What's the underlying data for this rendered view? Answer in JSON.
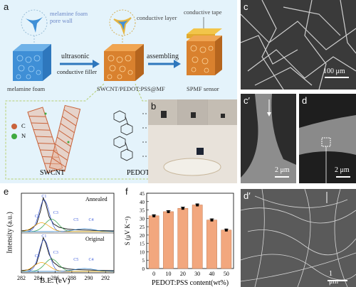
{
  "panels": {
    "a": {
      "label": "a",
      "pore_wall_label": "melamine foam\npore wall",
      "melamine_foam_label": "melamine foam",
      "ultrasonic_label": "ultrasonic",
      "conductive_filler_label": "conductive filler",
      "conductive_layer_label": "conductive layer",
      "composite_label": "SWCNT/PEDOT:PSS@MF",
      "assembling_label": "assembling",
      "conductive_tape_label": "conductive tape",
      "sensor_label": "SPMF sensor",
      "legend_c": "C",
      "legend_n": "N",
      "swcnt_label": "SWCNT",
      "pedot_label": "PEDOT:PSS",
      "colors": {
        "background": "#e4f3fb",
        "foam_blue": "#3f8fd6",
        "foam_orange": "#d9812e",
        "carbon": "#c9633b",
        "nitrogen": "#3faa3f"
      }
    },
    "b": {
      "label": "b"
    },
    "c": {
      "label": "c",
      "scale": "100 μm"
    },
    "c_prime": {
      "label": "c′",
      "scale": "2 μm"
    },
    "d": {
      "label": "d",
      "scale": "2 μm"
    },
    "d_prime": {
      "label": "d′",
      "scale": "1 μm"
    },
    "e": {
      "label": "e",
      "annealed_label": "Annealed",
      "original_label": "Original",
      "peak_labels": [
        "C1",
        "C2",
        "C3",
        "C5",
        "C4"
      ],
      "ylabel": "Intensity (a.u.)",
      "xlabel": "B.E. (eV)",
      "xticks": [
        "282",
        "284",
        "286",
        "288",
        "290",
        "292"
      ]
    },
    "f": {
      "label": "f"
    }
  },
  "chart_data": [
    {
      "type": "line",
      "panel": "e",
      "xlabel": "B.E. (eV)",
      "ylabel": "Intensity (a.u.)",
      "xlim": [
        282,
        293
      ],
      "series": [
        {
          "name": "Annealed",
          "x": [
            282,
            283,
            283.8,
            284.3,
            284.6,
            284.9,
            285.3,
            285.8,
            286.5,
            287.5,
            288.5,
            290,
            291,
            293
          ],
          "y": [
            0.02,
            0.05,
            0.2,
            0.6,
            0.95,
            0.78,
            0.42,
            0.22,
            0.12,
            0.07,
            0.05,
            0.04,
            0.03,
            0.02
          ]
        },
        {
          "name": "Original",
          "x": [
            282,
            283,
            283.8,
            284.3,
            284.6,
            284.9,
            285.3,
            285.8,
            286.5,
            287.5,
            288.5,
            290,
            291,
            293
          ],
          "y": [
            0.02,
            0.05,
            0.22,
            0.65,
            0.95,
            0.8,
            0.48,
            0.26,
            0.13,
            0.07,
            0.05,
            0.04,
            0.03,
            0.02
          ]
        }
      ],
      "grid": false
    },
    {
      "type": "bar",
      "panel": "f",
      "categories": [
        "0",
        "10",
        "20",
        "30",
        "40",
        "50"
      ],
      "values": [
        31.5,
        34,
        36,
        38,
        29,
        23
      ],
      "errors": [
        0.5,
        0.6,
        0.7,
        0.6,
        0.7,
        0.6
      ],
      "xlabel": "PEDOT:PSS content(wt%)",
      "ylabel": "S (μV K⁻¹)",
      "ylim": [
        0,
        45
      ],
      "yticks": [
        "0",
        "5",
        "10",
        "15",
        "20",
        "25",
        "30",
        "35",
        "40",
        "45"
      ],
      "bar_color": "#f2a77e",
      "grid": false
    }
  ]
}
